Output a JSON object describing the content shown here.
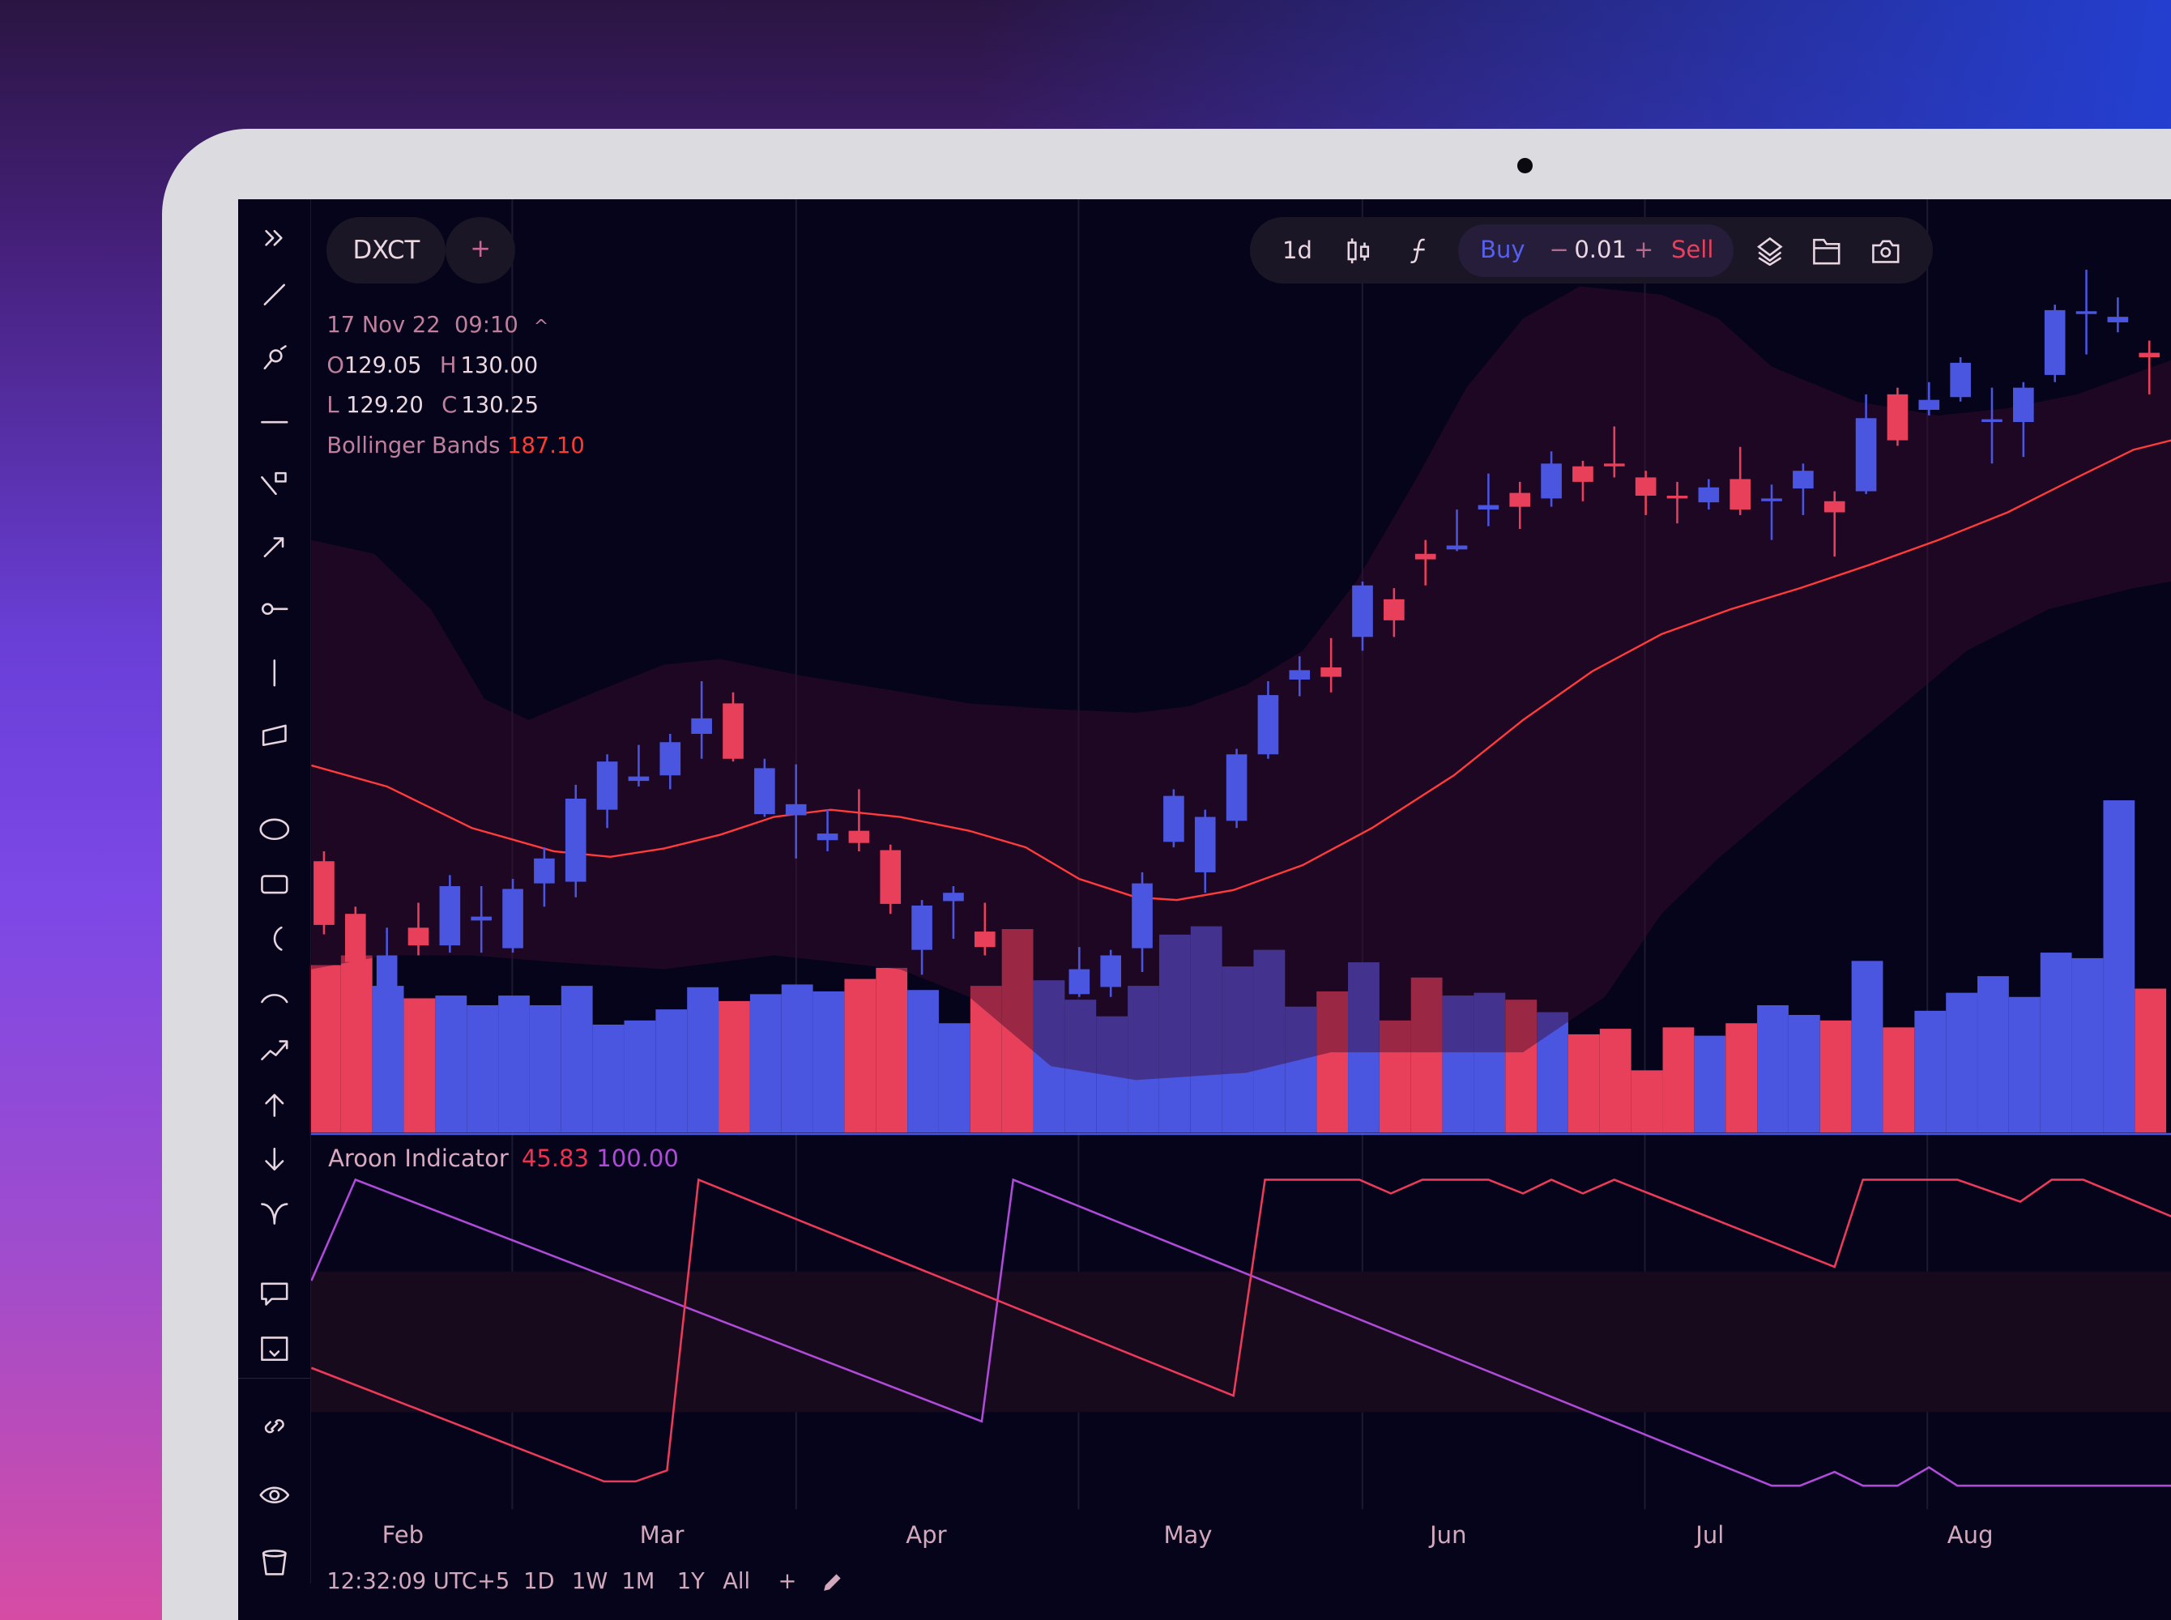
{
  "symbol": {
    "name": "DXCT",
    "add_label": "+"
  },
  "legend": {
    "date": "17 Nov 22",
    "time": "09:10",
    "o_label": "O",
    "o": "129.05",
    "h_label": "H",
    "h": "130.00",
    "l_label": "L",
    "l": "129.20",
    "c_label": "C",
    "c": "130.25",
    "bb_label": "Bollinger Bands",
    "bb_value": "187.10"
  },
  "toolbar": {
    "interval": "1d",
    "buy": "Buy",
    "minus": "−",
    "qty": "0.01",
    "plus": "+",
    "sell": "Sell"
  },
  "aroon": {
    "label": "Aroon Indicator",
    "down_value": "45.83",
    "up_value": "100.00"
  },
  "months": [
    "Feb",
    "Mar",
    "Apr",
    "May",
    "Jun",
    "Jul",
    "Aug"
  ],
  "bottom": {
    "clock": "12:32:09 UTC+5",
    "ranges": [
      "1D",
      "1W",
      "1M",
      "1Y",
      "All"
    ],
    "add": "+"
  },
  "colors": {
    "up": "#4a55e0",
    "down": "#e8405a",
    "bb_mid": "#ff3b3b",
    "aroon_up": "#b04ad8",
    "aroon_down": "#ee3a5a",
    "band": "#2a0c22"
  },
  "chart_data": {
    "type": "candlestick",
    "x_labels": [
      "Feb",
      "Mar",
      "Apr",
      "May",
      "Jun",
      "Jul",
      "Aug"
    ],
    "candles": [
      {
        "i": 0,
        "o": 69.5,
        "h": 71.3,
        "l": 56.3,
        "c": 58
      },
      {
        "i": 1,
        "o": 60,
        "h": 61.3,
        "l": 50,
        "c": 51.3
      },
      {
        "i": 2,
        "o": 46.3,
        "h": 57.5,
        "l": 45,
        "c": 52.5
      },
      {
        "i": 3,
        "o": 57.5,
        "h": 62,
        "l": 52.5,
        "c": 54.3
      },
      {
        "i": 4,
        "o": 54.3,
        "h": 67,
        "l": 53,
        "c": 65
      },
      {
        "i": 5,
        "o": 58.8,
        "h": 65,
        "l": 53,
        "c": 59.5
      },
      {
        "i": 6,
        "o": 53.8,
        "h": 66.3,
        "l": 53,
        "c": 64.5
      },
      {
        "i": 7,
        "o": 65.5,
        "h": 72,
        "l": 61.3,
        "c": 70
      },
      {
        "i": 8,
        "o": 65.8,
        "h": 83.3,
        "l": 63,
        "c": 80.8
      },
      {
        "i": 9,
        "o": 78.8,
        "h": 88.8,
        "l": 75.5,
        "c": 87.5
      },
      {
        "i": 10,
        "o": 84,
        "h": 90.5,
        "l": 83,
        "c": 84.8
      },
      {
        "i": 11,
        "o": 85,
        "h": 92.5,
        "l": 82.5,
        "c": 91
      },
      {
        "i": 12,
        "o": 92.5,
        "h": 102,
        "l": 88,
        "c": 95.3
      },
      {
        "i": 13,
        "o": 98,
        "h": 100,
        "l": 87.5,
        "c": 88
      },
      {
        "i": 14,
        "o": 78,
        "h": 88,
        "l": 77.5,
        "c": 86.3
      },
      {
        "i": 15,
        "o": 77.8,
        "h": 87,
        "l": 70,
        "c": 79.8
      },
      {
        "i": 16,
        "o": 73.3,
        "h": 78.8,
        "l": 71.3,
        "c": 74.5
      },
      {
        "i": 17,
        "o": 75,
        "h": 82.5,
        "l": 71.3,
        "c": 72.8
      },
      {
        "i": 18,
        "o": 71.5,
        "h": 72.5,
        "l": 60,
        "c": 61.8
      },
      {
        "i": 19,
        "o": 53.5,
        "h": 62.5,
        "l": 49,
        "c": 61.5
      },
      {
        "i": 20,
        "o": 62.3,
        "h": 65,
        "l": 55.5,
        "c": 63.8
      },
      {
        "i": 21,
        "o": 56.8,
        "h": 62,
        "l": 52.5,
        "c": 54
      },
      {
        "i": 24,
        "o": 45.5,
        "h": 54,
        "l": 45,
        "c": 50
      },
      {
        "i": 25,
        "o": 46.8,
        "h": 53.5,
        "l": 45,
        "c": 52.5
      },
      {
        "i": 26,
        "o": 53.8,
        "h": 67.5,
        "l": 49.5,
        "c": 65.5
      },
      {
        "i": 27,
        "o": 73,
        "h": 82.5,
        "l": 72,
        "c": 81.3
      },
      {
        "i": 28,
        "o": 67.5,
        "h": 78.8,
        "l": 63.8,
        "c": 77.5
      },
      {
        "i": 29,
        "o": 76.8,
        "h": 89.8,
        "l": 75.5,
        "c": 88.8
      },
      {
        "i": 30,
        "o": 88.8,
        "h": 102,
        "l": 88,
        "c": 99.5
      },
      {
        "i": 31,
        "o": 102.3,
        "h": 106.5,
        "l": 99.3,
        "c": 104
      },
      {
        "i": 32,
        "o": 104.5,
        "h": 109.8,
        "l": 100,
        "c": 102.8
      },
      {
        "i": 33,
        "o": 110,
        "h": 120,
        "l": 107.5,
        "c": 119.3
      },
      {
        "i": 34,
        "o": 116.8,
        "h": 118.8,
        "l": 110,
        "c": 113
      },
      {
        "i": 35,
        "o": 125,
        "h": 127.5,
        "l": 119.3,
        "c": 124
      },
      {
        "i": 36,
        "o": 125.8,
        "h": 133,
        "l": 125.5,
        "c": 126.5
      },
      {
        "i": 37,
        "o": 133,
        "h": 139.5,
        "l": 130,
        "c": 133.8
      },
      {
        "i": 38,
        "o": 136,
        "h": 138,
        "l": 129.5,
        "c": 133.5
      },
      {
        "i": 39,
        "o": 135,
        "h": 143.5,
        "l": 133.5,
        "c": 141.3
      },
      {
        "i": 40,
        "o": 140.8,
        "h": 141.8,
        "l": 134.5,
        "c": 138
      },
      {
        "i": 41,
        "o": 141.3,
        "h": 148,
        "l": 138.8,
        "c": 140.8
      },
      {
        "i": 42,
        "o": 138.8,
        "h": 140,
        "l": 132,
        "c": 135.5
      },
      {
        "i": 43,
        "o": 135.5,
        "h": 138,
        "l": 130.5,
        "c": 135
      },
      {
        "i": 44,
        "o": 134.3,
        "h": 138.5,
        "l": 133,
        "c": 137
      },
      {
        "i": 45,
        "o": 138.5,
        "h": 144.3,
        "l": 132,
        "c": 133
      },
      {
        "i": 46,
        "o": 134.5,
        "h": 137.5,
        "l": 127.5,
        "c": 135
      },
      {
        "i": 47,
        "o": 136.8,
        "h": 141.3,
        "l": 132,
        "c": 140
      },
      {
        "i": 48,
        "o": 134.5,
        "h": 136.3,
        "l": 124.5,
        "c": 132.5
      },
      {
        "i": 49,
        "o": 136.3,
        "h": 153.8,
        "l": 135.8,
        "c": 149.5
      },
      {
        "i": 50,
        "o": 153.8,
        "h": 155,
        "l": 144.5,
        "c": 145.5
      },
      {
        "i": 51,
        "o": 151,
        "h": 156,
        "l": 150,
        "c": 152.8
      },
      {
        "i": 52,
        "o": 153.3,
        "h": 160.5,
        "l": 152.5,
        "c": 159.5
      },
      {
        "i": 53,
        "o": 148.8,
        "h": 155,
        "l": 141.3,
        "c": 149.3
      },
      {
        "i": 54,
        "o": 148.8,
        "h": 156,
        "l": 142.5,
        "c": 155
      },
      {
        "i": 55,
        "o": 157.3,
        "h": 170,
        "l": 156,
        "c": 169
      },
      {
        "i": 56,
        "o": 168.5,
        "h": 176.3,
        "l": 161,
        "c": 168.8
      },
      {
        "i": 57,
        "o": 166.8,
        "h": 171.3,
        "l": 165,
        "c": 167.8
      },
      {
        "i": 58,
        "o": 161.3,
        "h": 163.5,
        "l": 153.8,
        "c": 160.5
      }
    ],
    "volume": [
      {
        "v": 121,
        "d": "down"
      },
      {
        "v": 128,
        "d": "down"
      },
      {
        "v": 106,
        "d": "up"
      },
      {
        "v": 97,
        "d": "down"
      },
      {
        "v": 99,
        "d": "up"
      },
      {
        "v": 92,
        "d": "up"
      },
      {
        "v": 99,
        "d": "up"
      },
      {
        "v": 92,
        "d": "up"
      },
      {
        "v": 106,
        "d": "up"
      },
      {
        "v": 78,
        "d": "up"
      },
      {
        "v": 81,
        "d": "up"
      },
      {
        "v": 89,
        "d": "up"
      },
      {
        "v": 105,
        "d": "up"
      },
      {
        "v": 95,
        "d": "down"
      },
      {
        "v": 100,
        "d": "up"
      },
      {
        "v": 107,
        "d": "up"
      },
      {
        "v": 102,
        "d": "up"
      },
      {
        "v": 111,
        "d": "down"
      },
      {
        "v": 119,
        "d": "down"
      },
      {
        "v": 103,
        "d": "up"
      },
      {
        "v": 79,
        "d": "up"
      },
      {
        "v": 106,
        "d": "down"
      },
      {
        "v": 147,
        "d": "down"
      },
      {
        "v": 110,
        "d": "up"
      },
      {
        "v": 96,
        "d": "up"
      },
      {
        "v": 84,
        "d": "up"
      },
      {
        "v": 106,
        "d": "up"
      },
      {
        "v": 143,
        "d": "up"
      },
      {
        "v": 149,
        "d": "up"
      },
      {
        "v": 120,
        "d": "up"
      },
      {
        "v": 132,
        "d": "up"
      },
      {
        "v": 91,
        "d": "up"
      },
      {
        "v": 102,
        "d": "down"
      },
      {
        "v": 123,
        "d": "up"
      },
      {
        "v": 81,
        "d": "down"
      },
      {
        "v": 112,
        "d": "down"
      },
      {
        "v": 99,
        "d": "up"
      },
      {
        "v": 101,
        "d": "up"
      },
      {
        "v": 96,
        "d": "down"
      },
      {
        "v": 87,
        "d": "up"
      },
      {
        "v": 71,
        "d": "down"
      },
      {
        "v": 75,
        "d": "down"
      },
      {
        "v": 45,
        "d": "down"
      },
      {
        "v": 76,
        "d": "down"
      },
      {
        "v": 70,
        "d": "up"
      },
      {
        "v": 79,
        "d": "down"
      },
      {
        "v": 92,
        "d": "up"
      },
      {
        "v": 85,
        "d": "up"
      },
      {
        "v": 81,
        "d": "down"
      },
      {
        "v": 124,
        "d": "up"
      },
      {
        "v": 76,
        "d": "down"
      },
      {
        "v": 88,
        "d": "up"
      },
      {
        "v": 101,
        "d": "up"
      },
      {
        "v": 113,
        "d": "up"
      },
      {
        "v": 98,
        "d": "up"
      },
      {
        "v": 130,
        "d": "up"
      },
      {
        "v": 126,
        "d": "up"
      },
      {
        "v": 240,
        "d": "up"
      },
      {
        "v": 104,
        "d": "down"
      }
    ],
    "bollinger": {
      "middle": [
        [
          -0.4,
          86.8
        ],
        [
          2,
          83
        ],
        [
          4.7,
          75.5
        ],
        [
          7.3,
          71.3
        ],
        [
          9.1,
          70.3
        ],
        [
          10.8,
          71.8
        ],
        [
          12.6,
          74.3
        ],
        [
          14.3,
          77.5
        ],
        [
          16.1,
          78.8
        ],
        [
          18.3,
          77.5
        ],
        [
          20.5,
          75
        ],
        [
          22.3,
          72
        ],
        [
          24,
          66.3
        ],
        [
          25.8,
          63
        ],
        [
          27.1,
          62.5
        ],
        [
          28.9,
          64.3
        ],
        [
          31.1,
          68.8
        ],
        [
          33.3,
          75.5
        ],
        [
          35.9,
          85
        ],
        [
          38.1,
          95
        ],
        [
          40.3,
          103.8
        ],
        [
          42.5,
          110.5
        ],
        [
          44.7,
          115
        ],
        [
          46.9,
          118.8
        ],
        [
          49.1,
          123
        ],
        [
          51.3,
          127.5
        ],
        [
          53.5,
          132.5
        ],
        [
          55.7,
          138.8
        ],
        [
          57.5,
          143.8
        ],
        [
          58.7,
          145.5
        ]
      ],
      "upper": [
        [
          -0.4,
          127.5
        ],
        [
          1.6,
          125
        ],
        [
          3.4,
          115
        ],
        [
          5.1,
          98.8
        ],
        [
          6.5,
          95
        ],
        [
          8.6,
          100
        ],
        [
          10.8,
          105
        ],
        [
          12.6,
          106
        ],
        [
          15.2,
          103
        ],
        [
          17.9,
          100.5
        ],
        [
          20.5,
          98
        ],
        [
          23.1,
          97
        ],
        [
          25.8,
          96.3
        ],
        [
          27.5,
          97.5
        ],
        [
          29.3,
          101.3
        ],
        [
          31.1,
          107.5
        ],
        [
          32.8,
          120
        ],
        [
          34.6,
          137.5
        ],
        [
          36.3,
          155
        ],
        [
          38.1,
          167.5
        ],
        [
          39.9,
          173.3
        ],
        [
          42.5,
          171.8
        ],
        [
          44.3,
          167.5
        ],
        [
          46,
          158.8
        ],
        [
          48.7,
          152.5
        ],
        [
          51.3,
          150
        ],
        [
          53.5,
          151.3
        ],
        [
          55.7,
          153.8
        ],
        [
          58.7,
          160
        ]
      ],
      "lower": [
        [
          -0.4,
          50
        ],
        [
          2,
          52.5
        ],
        [
          4.7,
          52.5
        ],
        [
          7.3,
          51.3
        ],
        [
          10.8,
          50
        ],
        [
          14.3,
          52.5
        ],
        [
          18.3,
          50
        ],
        [
          20.5,
          45
        ],
        [
          23.1,
          32.5
        ],
        [
          25.8,
          30
        ],
        [
          29.3,
          31.3
        ],
        [
          32,
          35
        ],
        [
          34.6,
          35
        ],
        [
          38.1,
          35
        ],
        [
          40.7,
          45
        ],
        [
          42.5,
          60
        ],
        [
          44.3,
          70
        ],
        [
          46.9,
          82.5
        ],
        [
          49.6,
          95
        ],
        [
          52.2,
          107.5
        ],
        [
          54.8,
          115
        ],
        [
          57.5,
          118.8
        ],
        [
          58.7,
          120
        ]
      ]
    },
    "aroon": {
      "range": [
        0,
        100
      ],
      "band": [
        24,
        70
      ],
      "up": [
        [
          -0.4,
          67
        ],
        [
          1,
          100
        ],
        [
          20.9,
          21
        ],
        [
          21.9,
          100
        ],
        [
          46,
          0
        ],
        [
          46.9,
          0
        ],
        [
          48,
          4.5
        ],
        [
          48.9,
          0
        ],
        [
          50,
          0
        ],
        [
          51,
          6
        ],
        [
          51.9,
          0
        ],
        [
          58.7,
          0
        ]
      ],
      "down": [
        [
          -0.4,
          38.5
        ],
        [
          8.9,
          1.4
        ],
        [
          9.9,
          1.4
        ],
        [
          10.9,
          5
        ],
        [
          11.9,
          100
        ],
        [
          28.9,
          29.4
        ],
        [
          29.9,
          100
        ],
        [
          32.9,
          100
        ],
        [
          33.9,
          95.5
        ],
        [
          34.9,
          100
        ],
        [
          37,
          100
        ],
        [
          38.1,
          95.5
        ],
        [
          39,
          100
        ],
        [
          40,
          95.5
        ],
        [
          41,
          100
        ],
        [
          48,
          71.5
        ],
        [
          48.9,
          100
        ],
        [
          51.9,
          100
        ],
        [
          53.9,
          92.8
        ],
        [
          54.9,
          100
        ],
        [
          55.9,
          100
        ],
        [
          58.7,
          88
        ]
      ]
    }
  }
}
